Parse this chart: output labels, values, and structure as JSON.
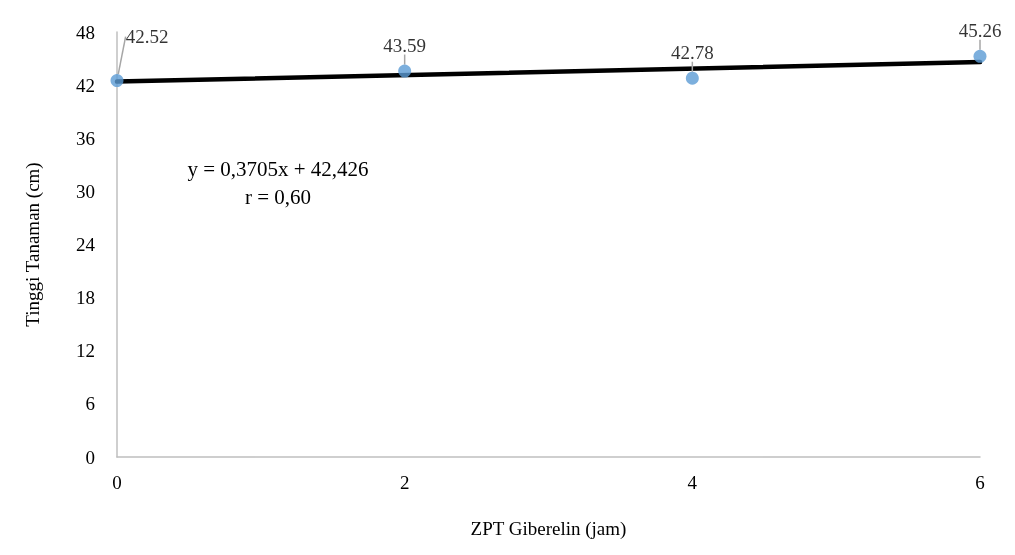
{
  "chart_data": {
    "type": "scatter",
    "xlabel": "ZPT Giberelin (jam)",
    "ylabel": "Tinggi Tanaman (cm)",
    "x": [
      0,
      2,
      4,
      6
    ],
    "series": [
      {
        "color": "#5b9bd5",
        "values": [
          42.52,
          43.59,
          42.78,
          45.26
        ],
        "value_labels": [
          "42.52",
          "43.59",
          "42.78",
          "45.26"
        ]
      },
      {
        "type": "line",
        "color": "#000000",
        "marker": "none",
        "x": [
          0,
          6
        ],
        "values": [
          42.4,
          44.6
        ]
      }
    ],
    "xlim": [
      0,
      6
    ],
    "xticks": [
      0,
      2,
      4,
      6
    ],
    "ylim": [
      0,
      48
    ],
    "yticks": [
      0,
      6,
      12,
      18,
      24,
      30,
      36,
      42,
      48
    ],
    "grid": false,
    "marker": "circle",
    "line_style": "solid",
    "annotations": [
      "y = 0,3705x + 42,426",
      "r = 0,60"
    ]
  }
}
